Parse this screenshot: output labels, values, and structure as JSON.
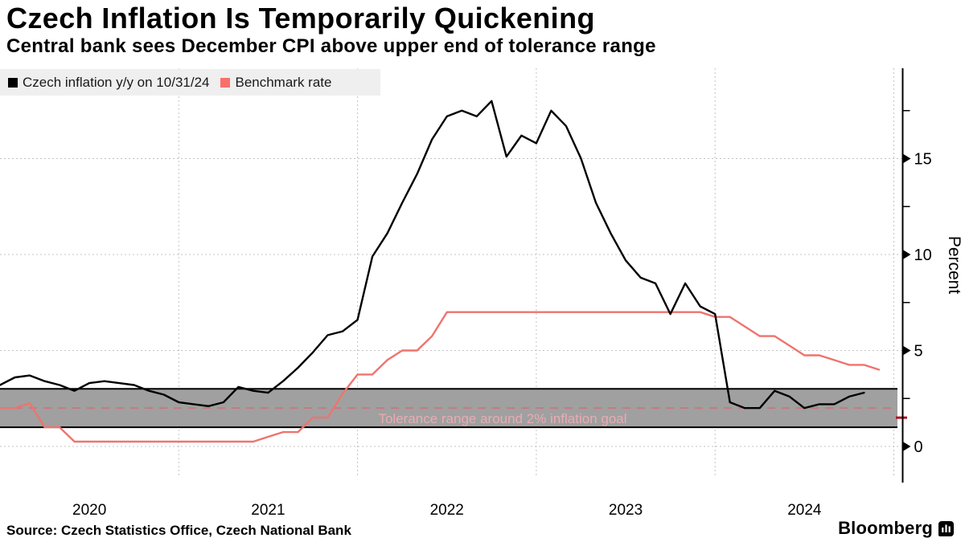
{
  "header": {
    "title": "Czech Inflation Is Temporarily Quickening",
    "subtitle": "Central bank sees December CPI above upper end of tolerance range"
  },
  "legend": {
    "items": [
      {
        "label": "Czech inflation y/y on 10/31/24",
        "color": "#000000"
      },
      {
        "label": "Benchmark rate",
        "color": "#f9706a"
      }
    ]
  },
  "footer": {
    "source": "Source: Czech Statistics Office, Czech National Bank",
    "brand": "Bloomberg"
  },
  "chart_data": {
    "type": "line",
    "title": "Czech Inflation Is Temporarily Quickening",
    "subtitle": "Central bank sees December CPI above upper end of tolerance range",
    "xlabel": "",
    "ylabel": "Percent",
    "unit": "%",
    "ylim": [
      -1.9,
      19.7
    ],
    "yticks_major": [
      0,
      5,
      10,
      15
    ],
    "yticks_minor": [
      2.5,
      7.5,
      12.5,
      17.5
    ],
    "x_year_labels": [
      "2020",
      "2021",
      "2022",
      "2023",
      "2024"
    ],
    "x_start_month": "2019-12",
    "freq": "monthly",
    "grid": "dashed",
    "legend_position": "top-left",
    "series": [
      {
        "name": "Czech inflation y/y on 10/31/24",
        "color": "#000000",
        "data_name": "inflation-line",
        "start": "2019-12",
        "end": "2024-10",
        "values": [
          3.2,
          3.6,
          3.7,
          3.4,
          3.2,
          2.9,
          3.3,
          3.4,
          3.3,
          3.2,
          2.9,
          2.7,
          2.3,
          2.2,
          2.1,
          2.3,
          3.1,
          2.9,
          2.8,
          3.4,
          4.1,
          4.9,
          5.8,
          6.0,
          6.6,
          9.9,
          11.1,
          12.7,
          14.2,
          16.0,
          17.2,
          17.5,
          17.2,
          18.0,
          15.1,
          16.2,
          15.8,
          17.5,
          16.7,
          15.0,
          12.7,
          11.1,
          9.7,
          8.8,
          8.5,
          6.9,
          8.5,
          7.3,
          6.9,
          2.3,
          2.0,
          2.0,
          2.9,
          2.6,
          2.0,
          2.2,
          2.2,
          2.6,
          2.8
        ]
      },
      {
        "name": "Benchmark rate",
        "color": "#ee746e",
        "data_name": "benchmark-line",
        "start": "2019-12",
        "end": "2024-11",
        "values": [
          2.0,
          2.0,
          2.25,
          1.0,
          1.0,
          0.25,
          0.25,
          0.25,
          0.25,
          0.25,
          0.25,
          0.25,
          0.25,
          0.25,
          0.25,
          0.25,
          0.25,
          0.25,
          0.5,
          0.75,
          0.75,
          1.5,
          1.5,
          2.75,
          3.75,
          3.75,
          4.5,
          5.0,
          5.0,
          5.75,
          7.0,
          7.0,
          7.0,
          7.0,
          7.0,
          7.0,
          7.0,
          7.0,
          7.0,
          7.0,
          7.0,
          7.0,
          7.0,
          7.0,
          7.0,
          7.0,
          7.0,
          7.0,
          6.75,
          6.75,
          6.25,
          5.75,
          5.75,
          5.25,
          4.75,
          4.75,
          4.5,
          4.25,
          4.25,
          4.0
        ]
      }
    ],
    "tolerance_band": {
      "label": "Tolerance range around 2% inflation goal",
      "low": 1,
      "high": 3,
      "target": 2,
      "fill": "#a0a0a0",
      "border_color": "#000000",
      "target_line_color": "#c9747d",
      "label_color": "#e9abb3",
      "axis_marker_value": 1.5,
      "axis_marker_color": "#b01222"
    }
  }
}
